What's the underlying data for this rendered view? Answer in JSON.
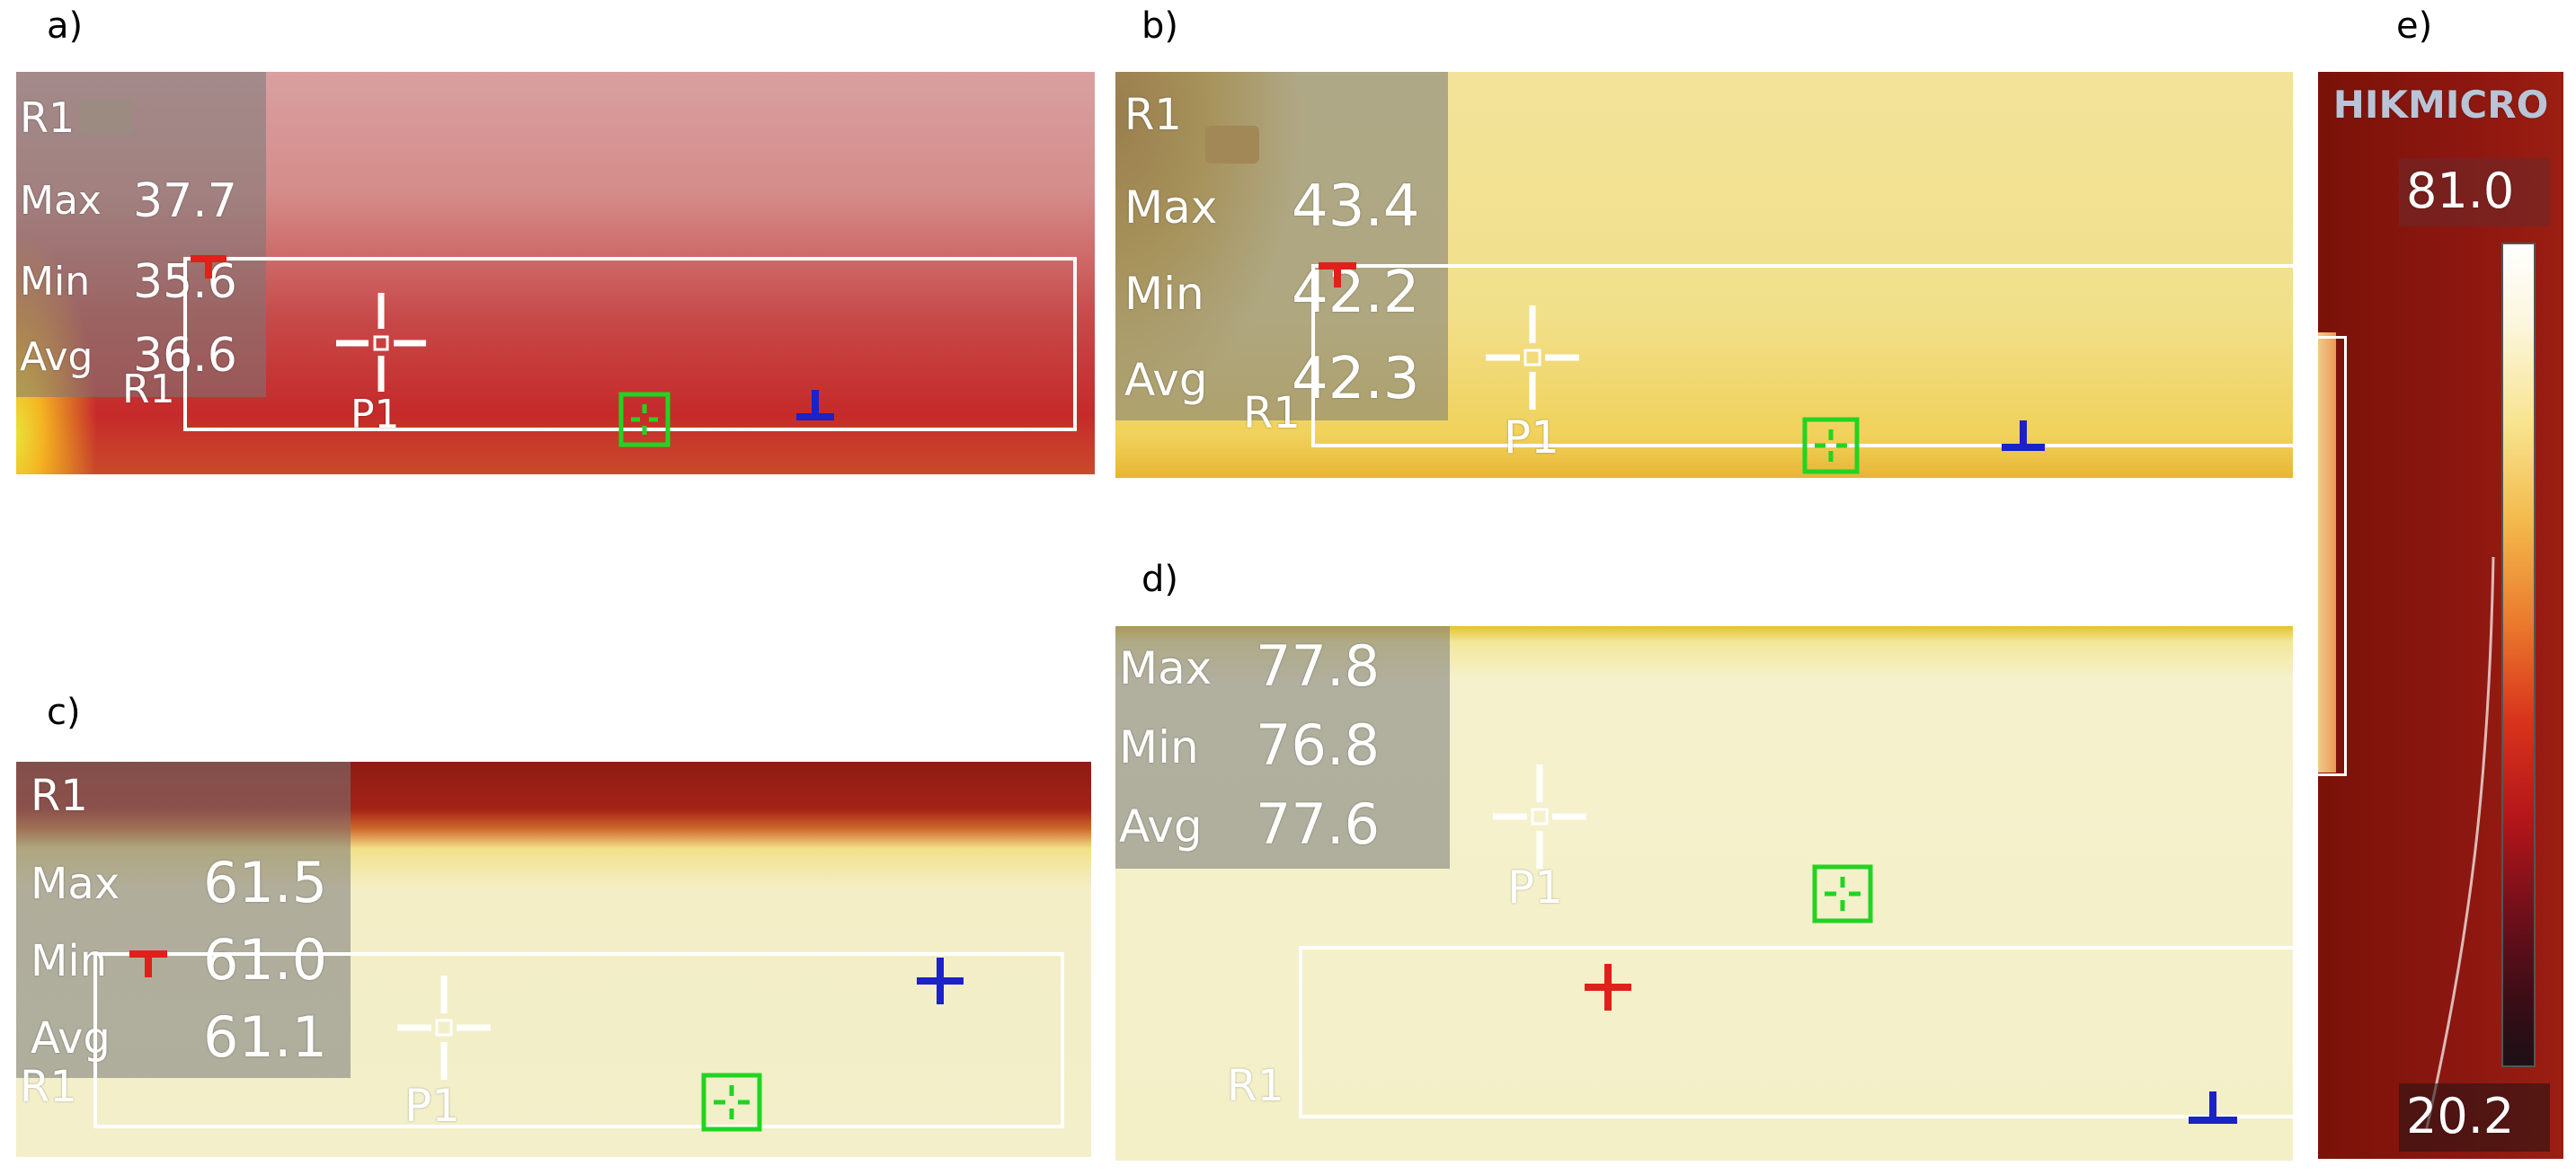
{
  "panels": {
    "a": {
      "label": "a)",
      "region": "R1",
      "max_label": "Max",
      "max": "37.7",
      "min_label": "Min",
      "min": "35.6",
      "avg_label": "Avg",
      "avg": "36.6",
      "roi_label": "R1",
      "point_label": "P1"
    },
    "b": {
      "label": "b)",
      "region": "R1",
      "max_label": "Max",
      "max": "43.4",
      "min_label": "Min",
      "min": "42.2",
      "avg_label": "Avg",
      "avg": "42.3",
      "roi_label": "R1",
      "point_label": "P1"
    },
    "c": {
      "label": "c)",
      "region": "R1",
      "max_label": "Max",
      "max": "61.5",
      "min_label": "Min",
      "min": "61.0",
      "avg_label": "Avg",
      "avg": "61.1",
      "roi_label": "R1",
      "point_label": "P1"
    },
    "d": {
      "label": "d)",
      "max_label": "Max",
      "max": "77.8",
      "min_label": "Min",
      "min": "76.8",
      "avg_label": "Avg",
      "avg": "77.6",
      "roi_label": "R1",
      "point_label": "P1"
    },
    "e": {
      "label": "e)",
      "brand": "HIKMICRO",
      "scale_max": "81.0",
      "scale_min": "20.2"
    }
  },
  "colors": {
    "max_marker": "#e0201a",
    "min_marker": "#1a22c8",
    "center_marker": "#22d422",
    "roi": "#ffffff"
  }
}
